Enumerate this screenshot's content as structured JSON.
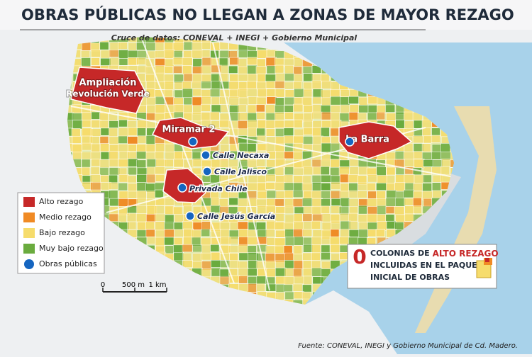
{
  "header": {
    "title": "OBRAS PÚBLICAS NO LLEGAN A ZONAS DE MAYOR REZAGO",
    "subtitle": "Cruce de datos: CONEVAL + INEGI + Gobierno Municipal"
  },
  "zones": [
    {
      "label_lines": [
        "Ampliación",
        "Revolución Verde"
      ]
    },
    {
      "label_lines": [
        "Miramar 2"
      ]
    },
    {
      "label_lines": [
        "La Barra"
      ]
    }
  ],
  "public_works": [
    {
      "label": "Calle Necaxa"
    },
    {
      "label": "Calle Jalisco"
    },
    {
      "label": "Privada Chile"
    },
    {
      "label": "Calle Jesús García"
    }
  ],
  "legend": {
    "items": [
      {
        "label": "Alto rezago",
        "color": "#c62828"
      },
      {
        "label": "Medio rezago",
        "color": "#f08a24"
      },
      {
        "label": "Bajo rezago",
        "color": "#f6dc6c"
      },
      {
        "label": "Muy bajo rezago",
        "color": "#6aab3e"
      },
      {
        "label": "Obras públicas",
        "color": "#1565c0"
      }
    ]
  },
  "scale_bar": {
    "labels": [
      "0",
      "500 m",
      "1 km"
    ]
  },
  "callout": {
    "count": 0,
    "line1_prefix": "COLONIAS DE",
    "line1_highlight": "ALTO REZAGO",
    "line2": "INCLUIDAS EN EL PAQUETE",
    "line3": "INICIAL DE OBRAS"
  },
  "source": "Fuente: CONEVAL, INEGI y Gobierno Municipal de Cd. Madero."
}
